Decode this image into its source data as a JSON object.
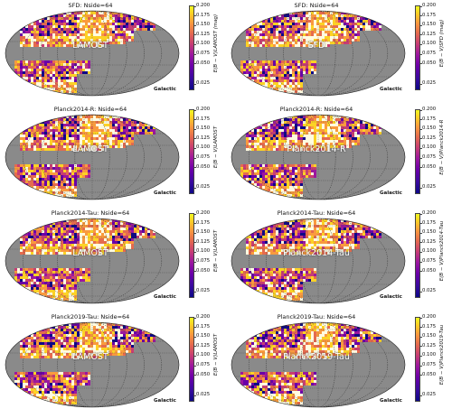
{
  "panels": [
    {
      "title": "SFD: Nside=64",
      "label": "LAMOST",
      "galactic": "Galactic",
      "cbar_label": "E(B − V)LAMOST (mag)"
    },
    {
      "title": "SFD: Nside=64",
      "label": "SFD",
      "galactic": "Galactic",
      "cbar_label": "E(B − V)SFD (mag)"
    },
    {
      "title": "Planck2014-R: Nside=64",
      "label": "LAMOST",
      "galactic": "Galactic",
      "cbar_label": "E(B − V)LAMOST"
    },
    {
      "title": "Planck2014-R: Nside=64",
      "label": "Planck2014-R",
      "galactic": "Galactic",
      "cbar_label": "E(B − V)Planck2014-R"
    },
    {
      "title": "Planck2014-Tau: Nside=64",
      "label": "LAMOST",
      "galactic": "Galactic",
      "cbar_label": "E(B − V)LAMOST"
    },
    {
      "title": "Planck2014-Tau: Nside=64",
      "label": "Planck2014-Tau",
      "galactic": "Galactic",
      "cbar_label": "E(B − V)Planck2014-Tau"
    },
    {
      "title": "Planck2019-Tau: Nside=64",
      "label": "LAMOST",
      "galactic": "Galactic",
      "cbar_label": "E(B − V)LAMOST"
    },
    {
      "title": "Planck2019-Tau: Nside=64",
      "label": "Planck2019-Tau",
      "galactic": "Galactic",
      "cbar_label": "E(B − V)Planck2019-Tau"
    }
  ],
  "colorbar_ticks": [
    "0.200",
    "0.175",
    "0.150",
    "0.125",
    "0.100",
    "0.075",
    "0.050",
    "0.025"
  ],
  "colors": {
    "masked": "#8a8a8a",
    "cmap": [
      "#0d0887",
      "#6a00a8",
      "#9c179e",
      "#c73e73",
      "#e56b4e",
      "#f99a3e",
      "#fcd225",
      "#fffbe0"
    ]
  }
}
